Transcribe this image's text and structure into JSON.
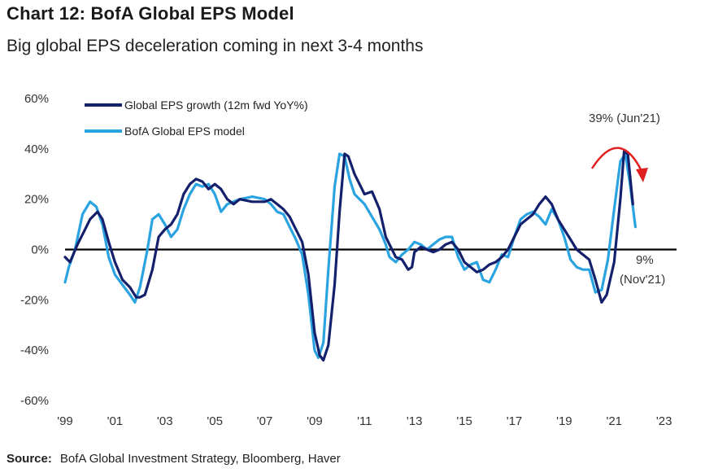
{
  "header": {
    "title": "Chart 12: BofA Global EPS Model",
    "subtitle": "Big global EPS deceleration coming in next 3-4 months"
  },
  "source": {
    "label": "Source:",
    "text": "BofA Global Investment Strategy, Bloomberg, Haver"
  },
  "chart_data": {
    "type": "line",
    "title": "Chart 12: BofA Global EPS Model",
    "subtitle": "Big global EPS deceleration coming in next 3-4 months",
    "xlabel": "",
    "ylabel": "",
    "xlim": [
      1999,
      2023.5
    ],
    "ylim": [
      -60,
      60
    ],
    "y_ticks": [
      -60,
      -40,
      -20,
      0,
      20,
      40,
      60
    ],
    "y_tick_labels": [
      "-60%",
      "-40%",
      "-20%",
      "0%",
      "20%",
      "40%",
      "60%"
    ],
    "x_ticks": [
      1999,
      2001,
      2003,
      2005,
      2007,
      2009,
      2011,
      2013,
      2015,
      2017,
      2019,
      2021,
      2023
    ],
    "x_tick_labels": [
      "'99",
      "'01",
      "'03",
      "'05",
      "'07",
      "'09",
      "'11",
      "'13",
      "'15",
      "'17",
      "'19",
      "'21",
      "'23"
    ],
    "grid": false,
    "legend_position": "top-left",
    "series": [
      {
        "name": "Global EPS growth (12m fwd YoY%)",
        "color": "#14206b",
        "points": [
          [
            1999.0,
            -3
          ],
          [
            1999.2,
            -5
          ],
          [
            1999.5,
            2
          ],
          [
            1999.8,
            8
          ],
          [
            2000.0,
            12
          ],
          [
            2000.3,
            15
          ],
          [
            2000.5,
            12
          ],
          [
            2000.75,
            3
          ],
          [
            2001.0,
            -5
          ],
          [
            2001.3,
            -12
          ],
          [
            2001.6,
            -15
          ],
          [
            2001.85,
            -19
          ],
          [
            2002.0,
            -19
          ],
          [
            2002.2,
            -18
          ],
          [
            2002.5,
            -8
          ],
          [
            2002.75,
            5
          ],
          [
            2003.0,
            8
          ],
          [
            2003.25,
            10
          ],
          [
            2003.5,
            14
          ],
          [
            2003.75,
            22
          ],
          [
            2004.0,
            26
          ],
          [
            2004.25,
            28
          ],
          [
            2004.5,
            27
          ],
          [
            2004.75,
            24
          ],
          [
            2005.0,
            26
          ],
          [
            2005.25,
            24
          ],
          [
            2005.5,
            20
          ],
          [
            2005.75,
            18
          ],
          [
            2006.0,
            20
          ],
          [
            2006.5,
            19
          ],
          [
            2007.0,
            19
          ],
          [
            2007.25,
            20
          ],
          [
            2007.5,
            18
          ],
          [
            2007.75,
            16
          ],
          [
            2008.0,
            13
          ],
          [
            2008.25,
            8
          ],
          [
            2008.5,
            3
          ],
          [
            2008.75,
            -10
          ],
          [
            2009.0,
            -33
          ],
          [
            2009.2,
            -42
          ],
          [
            2009.35,
            -44
          ],
          [
            2009.55,
            -38
          ],
          [
            2009.8,
            -14
          ],
          [
            2010.0,
            15
          ],
          [
            2010.2,
            38
          ],
          [
            2010.35,
            37
          ],
          [
            2010.6,
            30
          ],
          [
            2011.0,
            22
          ],
          [
            2011.3,
            23
          ],
          [
            2011.6,
            16
          ],
          [
            2011.85,
            5
          ],
          [
            2012.0,
            2
          ],
          [
            2012.25,
            -3
          ],
          [
            2012.5,
            -4
          ],
          [
            2012.75,
            -8
          ],
          [
            2012.9,
            -7
          ],
          [
            2013.0,
            -1
          ],
          [
            2013.25,
            1
          ],
          [
            2013.5,
            0
          ],
          [
            2013.75,
            -1
          ],
          [
            2014.0,
            0
          ],
          [
            2014.25,
            2
          ],
          [
            2014.5,
            3
          ],
          [
            2014.75,
            0
          ],
          [
            2015.0,
            -5
          ],
          [
            2015.25,
            -7
          ],
          [
            2015.5,
            -9
          ],
          [
            2015.75,
            -8
          ],
          [
            2016.0,
            -6
          ],
          [
            2016.25,
            -5
          ],
          [
            2016.5,
            -3
          ],
          [
            2016.75,
            0
          ],
          [
            2017.0,
            5
          ],
          [
            2017.25,
            10
          ],
          [
            2017.5,
            12
          ],
          [
            2017.75,
            14
          ],
          [
            2018.0,
            18
          ],
          [
            2018.25,
            21
          ],
          [
            2018.5,
            18
          ],
          [
            2018.75,
            12
          ],
          [
            2019.0,
            8
          ],
          [
            2019.25,
            4
          ],
          [
            2019.5,
            0
          ],
          [
            2019.75,
            -2
          ],
          [
            2020.0,
            -4
          ],
          [
            2020.25,
            -12
          ],
          [
            2020.5,
            -21
          ],
          [
            2020.7,
            -18
          ],
          [
            2021.0,
            -5
          ],
          [
            2021.25,
            20
          ],
          [
            2021.4,
            39
          ],
          [
            2021.55,
            38
          ],
          [
            2021.75,
            18
          ]
        ]
      },
      {
        "name": "BofA Global EPS model",
        "color": "#2aa3e0",
        "points": [
          [
            1999.0,
            -13
          ],
          [
            1999.15,
            -7
          ],
          [
            1999.4,
            0
          ],
          [
            1999.7,
            14
          ],
          [
            2000.0,
            19
          ],
          [
            2000.25,
            17
          ],
          [
            2000.5,
            10
          ],
          [
            2000.75,
            -3
          ],
          [
            2001.0,
            -10
          ],
          [
            2001.3,
            -14
          ],
          [
            2001.6,
            -18
          ],
          [
            2001.8,
            -21
          ],
          [
            2002.0,
            -15
          ],
          [
            2002.3,
            0
          ],
          [
            2002.5,
            12
          ],
          [
            2002.75,
            14
          ],
          [
            2003.0,
            10
          ],
          [
            2003.25,
            5
          ],
          [
            2003.5,
            8
          ],
          [
            2003.75,
            16
          ],
          [
            2004.0,
            22
          ],
          [
            2004.25,
            26
          ],
          [
            2004.5,
            25
          ],
          [
            2004.75,
            26
          ],
          [
            2005.0,
            22
          ],
          [
            2005.25,
            15
          ],
          [
            2005.5,
            18
          ],
          [
            2005.75,
            19
          ],
          [
            2006.0,
            20
          ],
          [
            2006.5,
            21
          ],
          [
            2007.0,
            20
          ],
          [
            2007.25,
            18
          ],
          [
            2007.5,
            15
          ],
          [
            2007.75,
            14
          ],
          [
            2008.0,
            9
          ],
          [
            2008.25,
            4
          ],
          [
            2008.5,
            -2
          ],
          [
            2008.75,
            -18
          ],
          [
            2009.0,
            -40
          ],
          [
            2009.15,
            -43
          ],
          [
            2009.35,
            -37
          ],
          [
            2009.55,
            -8
          ],
          [
            2009.8,
            25
          ],
          [
            2010.0,
            38
          ],
          [
            2010.2,
            37
          ],
          [
            2010.4,
            28
          ],
          [
            2010.6,
            22
          ],
          [
            2011.0,
            18
          ],
          [
            2011.3,
            13
          ],
          [
            2011.6,
            8
          ],
          [
            2011.85,
            2
          ],
          [
            2012.0,
            -3
          ],
          [
            2012.25,
            -5
          ],
          [
            2012.5,
            -2
          ],
          [
            2012.75,
            0
          ],
          [
            2013.0,
            3
          ],
          [
            2013.25,
            2
          ],
          [
            2013.5,
            0
          ],
          [
            2013.75,
            2
          ],
          [
            2014.0,
            4
          ],
          [
            2014.25,
            5
          ],
          [
            2014.5,
            5
          ],
          [
            2014.75,
            -3
          ],
          [
            2015.0,
            -8
          ],
          [
            2015.25,
            -6
          ],
          [
            2015.5,
            -5
          ],
          [
            2015.75,
            -12
          ],
          [
            2016.0,
            -13
          ],
          [
            2016.25,
            -8
          ],
          [
            2016.5,
            -2
          ],
          [
            2016.75,
            -3
          ],
          [
            2017.0,
            5
          ],
          [
            2017.25,
            12
          ],
          [
            2017.5,
            14
          ],
          [
            2017.75,
            15
          ],
          [
            2018.0,
            13
          ],
          [
            2018.25,
            10
          ],
          [
            2018.5,
            16
          ],
          [
            2018.75,
            12
          ],
          [
            2019.0,
            5
          ],
          [
            2019.25,
            -4
          ],
          [
            2019.5,
            -7
          ],
          [
            2019.75,
            -8
          ],
          [
            2020.0,
            -8
          ],
          [
            2020.25,
            -17
          ],
          [
            2020.5,
            -16
          ],
          [
            2020.75,
            -4
          ],
          [
            2021.0,
            16
          ],
          [
            2021.25,
            35
          ],
          [
            2021.45,
            38
          ],
          [
            2021.65,
            25
          ],
          [
            2021.85,
            9
          ]
        ]
      }
    ],
    "annotations": [
      {
        "text": "39% (Jun'21)",
        "x": 2021.5,
        "y": 39
      },
      {
        "text": "9%",
        "line2": "(Nov'21)",
        "x": 2021.85,
        "y": 9
      }
    ],
    "arrow_color": "#e02020"
  }
}
